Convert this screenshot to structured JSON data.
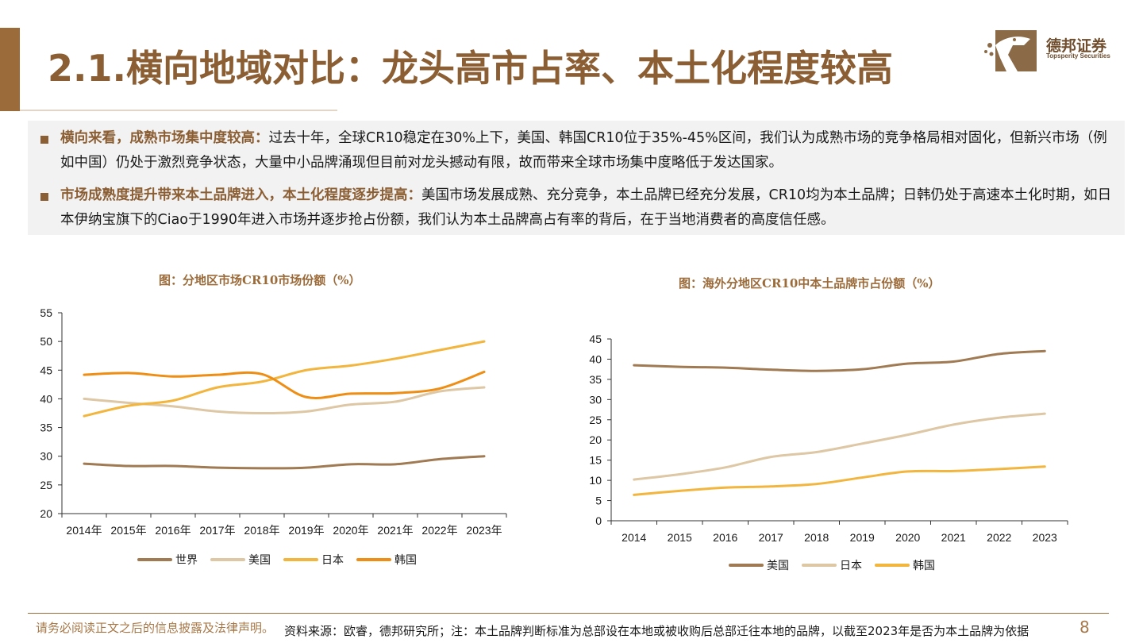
{
  "header": {
    "title": "2.1.横向地域对比：龙头高市占率、本土化程度较高",
    "logo_cn": "德邦证券",
    "logo_en": "Topsperity Securities"
  },
  "summary": [
    {
      "heading": "横向来看，成熟市场集中度较高：",
      "text": "过去十年，全球CR10稳定在30%上下，美国、韩国CR10位于35%-45%区间，我们认为成熟市场的竞争格局相对固化，但新兴市场（例如中国）仍处于激烈竞争状态，大量中小品牌涌现但目前对龙头撼动有限，故而带来全球市场集中度略低于发达国家。"
    },
    {
      "heading": "市场成熟度提升带来本土品牌进入，本土化程度逐步提高：",
      "text": "美国市场发展成熟、充分竞争，本土品牌已经充分发展，CR10均为本土品牌；日韩仍处于高速本土化时期，如日本伊纳宝旗下的Ciao于1990年进入市场并逐步抢占份额，我们认为本土品牌高占有率的背后，在于当地消费者的高度信任感。"
    }
  ],
  "chart_data": [
    {
      "type": "line",
      "title": "图：分地区市场CR10市场份额（%）",
      "categories": [
        "2014年",
        "2015年",
        "2016年",
        "2017年",
        "2018年",
        "2019年",
        "2020年",
        "2021年",
        "2022年",
        "2023年"
      ],
      "ylim": [
        20,
        55
      ],
      "yticks": [
        20,
        25,
        30,
        35,
        40,
        45,
        50,
        55
      ],
      "legend_position": "bottom",
      "grid": false,
      "series": [
        {
          "name": "世界",
          "color": "#a07a52",
          "values": [
            28.7,
            28.3,
            28.3,
            28.0,
            27.9,
            28.0,
            28.6,
            28.6,
            29.5,
            30.0
          ]
        },
        {
          "name": "美国",
          "color": "#ddc7a4",
          "values": [
            40.0,
            39.3,
            38.7,
            37.8,
            37.5,
            37.8,
            39.0,
            39.5,
            41.3,
            42.0
          ]
        },
        {
          "name": "日本",
          "color": "#f2b53d",
          "values": [
            37.0,
            38.8,
            39.7,
            42.0,
            43.0,
            45.0,
            45.8,
            47.0,
            48.5,
            50.0
          ]
        },
        {
          "name": "韩国",
          "color": "#ee8e14",
          "values": [
            44.2,
            44.5,
            43.9,
            44.2,
            44.3,
            40.3,
            40.9,
            41.0,
            41.8,
            44.7
          ]
        }
      ]
    },
    {
      "type": "line",
      "title": "图：海外分地区CR10中本土品牌市占份额（%）",
      "categories": [
        "2014",
        "2015",
        "2016",
        "2017",
        "2018",
        "2019",
        "2020",
        "2021",
        "2022",
        "2023"
      ],
      "ylim": [
        0,
        45
      ],
      "yticks": [
        0,
        5,
        10,
        15,
        20,
        25,
        30,
        35,
        40,
        45
      ],
      "legend_position": "bottom",
      "grid": false,
      "series": [
        {
          "name": "美国",
          "color": "#a07a52",
          "values": [
            38.5,
            38.1,
            37.9,
            37.4,
            37.1,
            37.5,
            38.9,
            39.4,
            41.3,
            42.0
          ]
        },
        {
          "name": "日本",
          "color": "#ddc7a4",
          "values": [
            10.2,
            11.5,
            13.2,
            15.8,
            17.0,
            19.1,
            21.3,
            23.8,
            25.5,
            26.5
          ]
        },
        {
          "name": "韩国",
          "color": "#f2b53d",
          "values": [
            6.4,
            7.4,
            8.2,
            8.5,
            9.1,
            10.7,
            12.2,
            12.3,
            12.8,
            13.4
          ]
        }
      ]
    }
  ],
  "footer": {
    "disclaimer": "请务必阅读正文之后的信息披露及法律声明。",
    "source": "资料来源：欧睿，德邦研究所；注：本土品牌判断标准为总部设在本地或被收购后总部迁往本地的品牌，以截至2023年是否为本土品牌为依据",
    "page": "8"
  },
  "colors": {
    "brand": "#8b5e34",
    "accent": "#9c6b3a"
  }
}
